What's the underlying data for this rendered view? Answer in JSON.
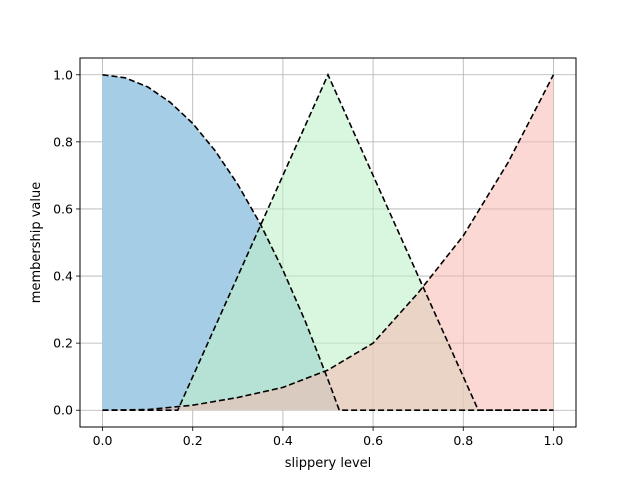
{
  "chart_data": {
    "type": "area",
    "title": "",
    "xlabel": "slippery level",
    "ylabel": "membership value",
    "xlim": [
      -0.05,
      1.05
    ],
    "ylim": [
      -0.05,
      1.05
    ],
    "x_ticks": [
      0.0,
      0.2,
      0.4,
      0.6,
      0.8,
      1.0
    ],
    "x_tick_labels": [
      "0.0",
      "0.2",
      "0.4",
      "0.6",
      "0.8",
      "1.0"
    ],
    "y_ticks": [
      0.0,
      0.2,
      0.4,
      0.6,
      0.8,
      1.0
    ],
    "y_tick_labels": [
      "0.0",
      "0.2",
      "0.4",
      "0.6",
      "0.8",
      "1.0"
    ],
    "grid": true,
    "legend": false,
    "series": [
      {
        "line_style": "dashed",
        "fill_color": "#a6cde6",
        "line_color": "#000000",
        "x": [
          0.0,
          0.05,
          0.1,
          0.15,
          0.2,
          0.25,
          0.3,
          0.35,
          0.4,
          0.45,
          0.5,
          0.525,
          0.55,
          0.6,
          0.65,
          0.7,
          0.75,
          0.8,
          0.85,
          0.9,
          0.95,
          1.0
        ],
        "y": [
          1.0,
          0.991,
          0.964,
          0.918,
          0.855,
          0.773,
          0.673,
          0.555,
          0.418,
          0.264,
          0.091,
          0.0,
          0.0,
          0.0,
          0.0,
          0.0,
          0.0,
          0.0,
          0.0,
          0.0,
          0.0,
          0.0
        ]
      },
      {
        "line_style": "dashed",
        "fill_color": "#bff0c8",
        "fill_opacity": 0.6,
        "line_color": "#000000",
        "x": [
          0.0,
          0.1667,
          0.5,
          0.8333,
          1.0
        ],
        "y": [
          0.0,
          0.0,
          1.0,
          0.0,
          0.0
        ]
      },
      {
        "line_style": "dashed",
        "fill_color": "#f8b8b0",
        "fill_opacity": 0.55,
        "line_color": "#000000",
        "x": [
          0.0,
          0.1,
          0.2,
          0.3,
          0.4,
          0.5,
          0.6,
          0.7,
          0.8,
          0.9,
          1.0
        ],
        "y": [
          0.0,
          0.002,
          0.015,
          0.038,
          0.068,
          0.12,
          0.2,
          0.35,
          0.52,
          0.74,
          1.0
        ]
      }
    ]
  }
}
